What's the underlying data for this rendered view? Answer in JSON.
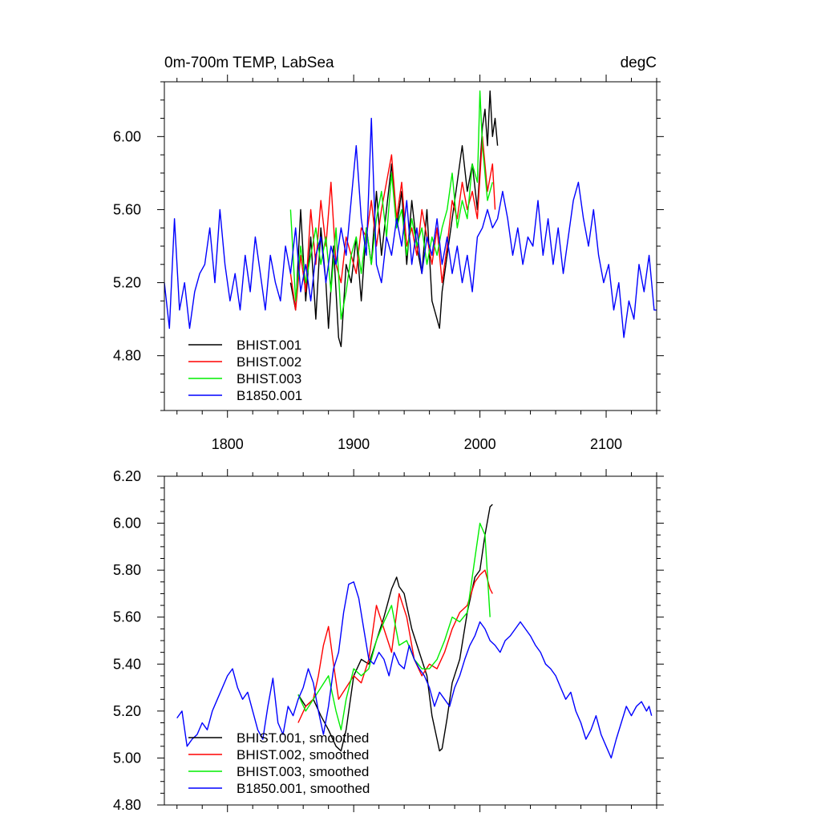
{
  "chart_data": [
    {
      "type": "line",
      "title": "0m-700m TEMP, LabSea",
      "units": "degC",
      "xlabel": "",
      "ylabel": "",
      "xlim": [
        1750,
        2140
      ],
      "ylim": [
        4.5,
        6.3
      ],
      "xticks": [
        1800,
        1900,
        2000,
        2100
      ],
      "xtick_labels": [
        "1800",
        "1900",
        "2000",
        "2100"
      ],
      "yticks": [
        4.8,
        5.2,
        5.6,
        6.0
      ],
      "ytick_labels": [
        "4.80",
        "5.20",
        "5.60",
        "6.00"
      ],
      "legend_position": "bottom-left",
      "grid": false,
      "series": [
        {
          "name": "BHIST.001",
          "color": "#000000",
          "x": [
            1850,
            1854,
            1858,
            1862,
            1866,
            1870,
            1874,
            1878,
            1880,
            1884,
            1888,
            1890,
            1894,
            1898,
            1902,
            1906,
            1910,
            1914,
            1918,
            1922,
            1926,
            1930,
            1934,
            1938,
            1942,
            1946,
            1950,
            1954,
            1958,
            1962,
            1966,
            1968,
            1970,
            1974,
            1978,
            1982,
            1986,
            1990,
            1994,
            1998,
            2002,
            2004,
            2006,
            2008,
            2010,
            2012,
            2014
          ],
          "y": [
            5.2,
            5.05,
            5.6,
            5.1,
            5.45,
            5.0,
            5.5,
            5.2,
            4.95,
            5.4,
            4.9,
            4.85,
            5.3,
            5.2,
            5.45,
            5.1,
            5.5,
            5.3,
            5.7,
            5.35,
            5.6,
            5.85,
            5.5,
            5.7,
            5.3,
            5.65,
            5.4,
            5.25,
            5.6,
            5.1,
            5.0,
            4.95,
            5.15,
            5.35,
            5.55,
            5.75,
            5.95,
            5.7,
            5.85,
            5.6,
            6.05,
            6.15,
            5.95,
            6.25,
            6.0,
            6.1,
            5.95
          ]
        },
        {
          "name": "BHIST.002",
          "color": "#ff0000",
          "x": [
            1850,
            1854,
            1858,
            1862,
            1866,
            1870,
            1874,
            1878,
            1882,
            1886,
            1890,
            1894,
            1898,
            1902,
            1906,
            1910,
            1914,
            1918,
            1922,
            1926,
            1930,
            1934,
            1938,
            1942,
            1946,
            1950,
            1954,
            1958,
            1962,
            1966,
            1970,
            1974,
            1978,
            1982,
            1986,
            1990,
            1994,
            1998,
            2002,
            2006,
            2010,
            2012
          ],
          "y": [
            5.25,
            5.05,
            5.35,
            5.15,
            5.6,
            5.3,
            5.65,
            5.4,
            5.75,
            5.3,
            5.2,
            5.45,
            5.35,
            5.25,
            5.5,
            5.45,
            5.65,
            5.4,
            5.6,
            5.75,
            5.9,
            5.55,
            5.75,
            5.4,
            5.5,
            5.35,
            5.6,
            5.45,
            5.3,
            5.5,
            5.2,
            5.4,
            5.65,
            5.55,
            5.75,
            5.6,
            5.7,
            5.55,
            6.0,
            5.7,
            5.85,
            5.6
          ]
        },
        {
          "name": "BHIST.003",
          "color": "#00ee00",
          "x": [
            1850,
            1854,
            1858,
            1862,
            1866,
            1870,
            1874,
            1878,
            1882,
            1886,
            1890,
            1894,
            1898,
            1902,
            1906,
            1910,
            1914,
            1918,
            1922,
            1926,
            1930,
            1934,
            1938,
            1942,
            1946,
            1950,
            1954,
            1958,
            1962,
            1966,
            1970,
            1974,
            1978,
            1982,
            1986,
            1990,
            1994,
            1998,
            2000,
            2002,
            2006,
            2010
          ],
          "y": [
            5.6,
            5.1,
            5.4,
            5.2,
            5.35,
            5.5,
            5.3,
            5.45,
            5.15,
            5.5,
            5.0,
            5.15,
            5.35,
            5.45,
            5.25,
            5.5,
            5.3,
            5.55,
            5.7,
            5.45,
            5.8,
            5.5,
            5.6,
            5.35,
            5.55,
            5.4,
            5.5,
            5.3,
            5.45,
            5.35,
            5.5,
            5.6,
            5.8,
            5.5,
            5.65,
            5.55,
            5.85,
            5.75,
            6.25,
            5.95,
            5.65,
            5.75
          ]
        },
        {
          "name": "B1850.001",
          "color": "#0000ff",
          "x": [
            1750,
            1754,
            1758,
            1762,
            1766,
            1770,
            1774,
            1778,
            1782,
            1786,
            1790,
            1794,
            1798,
            1802,
            1806,
            1810,
            1814,
            1818,
            1822,
            1826,
            1830,
            1834,
            1838,
            1842,
            1846,
            1850,
            1854,
            1858,
            1862,
            1866,
            1870,
            1874,
            1878,
            1882,
            1886,
            1890,
            1894,
            1898,
            1902,
            1906,
            1910,
            1914,
            1918,
            1922,
            1926,
            1930,
            1934,
            1938,
            1942,
            1946,
            1950,
            1954,
            1958,
            1962,
            1966,
            1970,
            1974,
            1978,
            1982,
            1986,
            1990,
            1994,
            1998,
            2002,
            2006,
            2010,
            2014,
            2018,
            2022,
            2026,
            2030,
            2034,
            2038,
            2042,
            2046,
            2050,
            2054,
            2058,
            2062,
            2066,
            2070,
            2074,
            2078,
            2082,
            2086,
            2090,
            2094,
            2098,
            2102,
            2106,
            2110,
            2114,
            2118,
            2122,
            2126,
            2130,
            2134,
            2138,
            2140
          ],
          "y": [
            5.2,
            4.95,
            5.55,
            5.05,
            5.2,
            4.95,
            5.15,
            5.25,
            5.3,
            5.5,
            5.2,
            5.6,
            5.3,
            5.1,
            5.25,
            5.05,
            5.35,
            5.15,
            5.45,
            5.25,
            5.05,
            5.35,
            5.2,
            5.1,
            5.4,
            5.25,
            5.5,
            5.15,
            5.3,
            5.1,
            5.35,
            5.45,
            5.2,
            5.4,
            5.3,
            5.5,
            5.35,
            5.65,
            5.95,
            5.55,
            5.35,
            6.1,
            5.3,
            5.2,
            5.45,
            5.35,
            5.55,
            5.4,
            5.65,
            5.3,
            5.5,
            5.25,
            5.45,
            5.35,
            5.55,
            5.3,
            5.45,
            5.25,
            5.4,
            5.2,
            5.35,
            5.15,
            5.45,
            5.5,
            5.6,
            5.5,
            5.55,
            5.7,
            5.55,
            5.35,
            5.5,
            5.3,
            5.45,
            5.4,
            5.65,
            5.35,
            5.55,
            5.3,
            5.5,
            5.25,
            5.45,
            5.65,
            5.75,
            5.55,
            5.4,
            5.6,
            5.35,
            5.2,
            5.3,
            5.05,
            5.2,
            4.9,
            5.1,
            5.0,
            5.3,
            5.15,
            5.35,
            5.05,
            5.05
          ]
        }
      ]
    },
    {
      "type": "line",
      "title": "",
      "xlabel": "",
      "ylabel": "",
      "xlim": [
        1750,
        2140
      ],
      "ylim": [
        4.8,
        6.2
      ],
      "xticks": [
        1800,
        1900,
        2000,
        2100
      ],
      "xtick_labels": [
        "",
        "",
        "",
        ""
      ],
      "yticks": [
        4.8,
        5.0,
        5.2,
        5.4,
        5.6,
        5.8,
        6.0,
        6.2
      ],
      "ytick_labels": [
        "4.80",
        "5.00",
        "5.20",
        "5.40",
        "5.60",
        "5.80",
        "6.00",
        "6.20"
      ],
      "legend_position": "bottom-left",
      "grid": false,
      "series": [
        {
          "name": "BHIST.001, smoothed",
          "color": "#000000",
          "x": [
            1856,
            1862,
            1868,
            1874,
            1880,
            1886,
            1890,
            1894,
            1900,
            1906,
            1912,
            1918,
            1924,
            1930,
            1934,
            1936,
            1940,
            1946,
            1952,
            1958,
            1962,
            1966,
            1968,
            1970,
            1974,
            1978,
            1984,
            1990,
            1996,
            2000,
            2004,
            2008,
            2010
          ],
          "y": [
            5.27,
            5.22,
            5.25,
            5.18,
            5.12,
            5.05,
            5.03,
            5.12,
            5.35,
            5.42,
            5.4,
            5.5,
            5.6,
            5.72,
            5.77,
            5.73,
            5.7,
            5.55,
            5.45,
            5.35,
            5.18,
            5.08,
            5.03,
            5.04,
            5.17,
            5.32,
            5.42,
            5.62,
            5.77,
            5.8,
            5.95,
            6.07,
            6.08
          ]
        },
        {
          "name": "BHIST.002, smoothed",
          "color": "#ff0000",
          "x": [
            1856,
            1862,
            1868,
            1872,
            1876,
            1880,
            1884,
            1888,
            1894,
            1900,
            1906,
            1912,
            1918,
            1924,
            1930,
            1936,
            1942,
            1948,
            1954,
            1960,
            1966,
            1972,
            1978,
            1984,
            1990,
            1996,
            2000,
            2004,
            2008,
            2010
          ],
          "y": [
            5.15,
            5.22,
            5.25,
            5.35,
            5.48,
            5.56,
            5.4,
            5.25,
            5.3,
            5.35,
            5.32,
            5.42,
            5.65,
            5.55,
            5.45,
            5.7,
            5.6,
            5.42,
            5.35,
            5.4,
            5.38,
            5.45,
            5.55,
            5.62,
            5.65,
            5.75,
            5.78,
            5.8,
            5.72,
            5.7
          ]
        },
        {
          "name": "BHIST.003, smoothed",
          "color": "#00ee00",
          "x": [
            1856,
            1862,
            1868,
            1874,
            1880,
            1886,
            1890,
            1894,
            1900,
            1906,
            1912,
            1918,
            1924,
            1930,
            1936,
            1942,
            1948,
            1954,
            1960,
            1966,
            1972,
            1978,
            1984,
            1990,
            1996,
            2000,
            2004,
            2008
          ],
          "y": [
            5.27,
            5.2,
            5.25,
            5.3,
            5.35,
            5.2,
            5.12,
            5.25,
            5.38,
            5.35,
            5.38,
            5.5,
            5.58,
            5.65,
            5.48,
            5.5,
            5.42,
            5.38,
            5.38,
            5.42,
            5.5,
            5.6,
            5.58,
            5.62,
            5.85,
            6.0,
            5.95,
            5.6
          ]
        },
        {
          "name": "B1850.001, smoothed",
          "color": "#0000ff",
          "x": [
            1760,
            1764,
            1768,
            1772,
            1776,
            1780,
            1784,
            1788,
            1792,
            1796,
            1800,
            1804,
            1808,
            1812,
            1816,
            1820,
            1824,
            1828,
            1832,
            1836,
            1840,
            1844,
            1848,
            1852,
            1856,
            1860,
            1864,
            1868,
            1872,
            1876,
            1880,
            1884,
            1888,
            1892,
            1896,
            1900,
            1904,
            1908,
            1912,
            1916,
            1920,
            1924,
            1928,
            1932,
            1936,
            1940,
            1944,
            1948,
            1952,
            1956,
            1960,
            1964,
            1968,
            1972,
            1976,
            1980,
            1984,
            1988,
            1992,
            1996,
            2000,
            2004,
            2008,
            2012,
            2016,
            2020,
            2024,
            2028,
            2032,
            2036,
            2040,
            2044,
            2048,
            2052,
            2056,
            2060,
            2064,
            2068,
            2072,
            2076,
            2080,
            2084,
            2088,
            2092,
            2096,
            2100,
            2104,
            2108,
            2112,
            2116,
            2120,
            2124,
            2128,
            2132,
            2134,
            2136
          ],
          "y": [
            5.17,
            5.2,
            5.05,
            5.08,
            5.1,
            5.15,
            5.12,
            5.2,
            5.25,
            5.3,
            5.35,
            5.38,
            5.3,
            5.25,
            5.28,
            5.2,
            5.12,
            5.08,
            5.22,
            5.34,
            5.15,
            5.1,
            5.22,
            5.18,
            5.25,
            5.3,
            5.38,
            5.32,
            5.2,
            5.1,
            5.22,
            5.38,
            5.45,
            5.62,
            5.74,
            5.75,
            5.68,
            5.55,
            5.42,
            5.4,
            5.45,
            5.42,
            5.35,
            5.45,
            5.4,
            5.38,
            5.48,
            5.42,
            5.38,
            5.35,
            5.3,
            5.22,
            5.28,
            5.25,
            5.22,
            5.3,
            5.35,
            5.42,
            5.48,
            5.52,
            5.58,
            5.55,
            5.5,
            5.48,
            5.45,
            5.5,
            5.52,
            5.55,
            5.58,
            5.55,
            5.52,
            5.48,
            5.45,
            5.4,
            5.38,
            5.35,
            5.3,
            5.25,
            5.28,
            5.2,
            5.15,
            5.08,
            5.12,
            5.18,
            5.1,
            5.05,
            5.0,
            5.08,
            5.15,
            5.22,
            5.18,
            5.22,
            5.24,
            5.2,
            5.22,
            5.18
          ]
        }
      ]
    }
  ]
}
